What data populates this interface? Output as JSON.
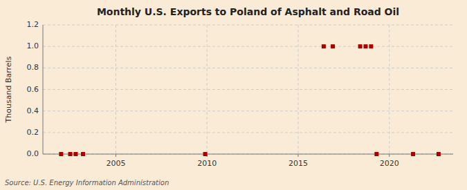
{
  "chart_data": {
    "type": "scatter",
    "title": "Monthly U.S. Exports to Poland of Asphalt and Road Oil",
    "ylabel": "Thousand Barrels",
    "annotations": [
      "Source: U.S. Energy Information Administration"
    ],
    "x": [
      2002.0,
      2002.5,
      2002.8,
      2003.2,
      2009.9,
      2016.4,
      2016.9,
      2018.4,
      2018.7,
      2019.0,
      2019.3,
      2021.3,
      2022.7
    ],
    "values": [
      0.0,
      0.0,
      0.0,
      0.0,
      0.0,
      1.0,
      1.0,
      1.0,
      1.0,
      1.0,
      0.0,
      0.0,
      0.0
    ],
    "color": "#aa0000",
    "marker": "square",
    "xlim": [
      2001.0,
      2023.5
    ],
    "xticks": [
      2005,
      2010,
      2015,
      2020
    ],
    "ylim": [
      0,
      1.2
    ],
    "yticks": [
      {
        "value": 0.0,
        "label": "0.0"
      },
      0.2,
      0.4,
      0.6,
      0.8,
      {
        "value": 1.0,
        "label": "1.0"
      },
      1.2
    ],
    "grid": true
  }
}
